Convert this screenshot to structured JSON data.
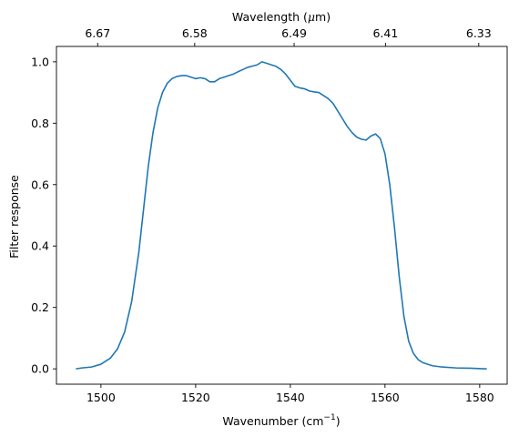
{
  "chart_data": {
    "type": "line",
    "title": "",
    "xlabel": "Wavenumber (cm",
    "xlabel_sup": "−1",
    "xlabel_tail": ")",
    "ylabel": "Filter response",
    "top_axis_label": "Wavelength (",
    "top_axis_label_mu": "μ",
    "top_axis_label_tail": "m)",
    "xlim": [
      1490.6,
      1585.8
    ],
    "ylim": [
      -0.05,
      1.05
    ],
    "x_ticks": [
      1500,
      1520,
      1540,
      1560,
      1580
    ],
    "x_tick_labels": [
      "1500",
      "1520",
      "1540",
      "1560",
      "1580"
    ],
    "y_ticks": [
      0.0,
      0.2,
      0.4,
      0.6,
      0.8,
      1.0
    ],
    "y_tick_labels": [
      "0.0",
      "0.2",
      "0.4",
      "0.6",
      "0.8",
      "1.0"
    ],
    "top_ticks_wavenumber": [
      1499.3,
      1519.8,
      1540.8,
      1560.1,
      1579.8
    ],
    "top_tick_labels": [
      "6.67",
      "6.58",
      "6.49",
      "6.41",
      "6.33"
    ],
    "grid": false,
    "line_color": "#1f77b4",
    "series": [
      {
        "x": [
          1494.7,
          1496.0,
          1498.0,
          1500.0,
          1502.0,
          1503.5,
          1505.0,
          1506.5,
          1508.0,
          1509.0,
          1510.0,
          1511.0,
          1512.0,
          1513.0,
          1514.0,
          1515.0,
          1516.0,
          1517.0,
          1518.0,
          1519.0,
          1520.0,
          1521.0,
          1522.0,
          1523.0,
          1524.0,
          1525.0,
          1526.0,
          1527.0,
          1528.0,
          1529.0,
          1530.0,
          1531.0,
          1532.0,
          1533.0,
          1534.0,
          1535.0,
          1536.0,
          1537.0,
          1538.0,
          1539.0,
          1540.0,
          1541.0,
          1542.0,
          1543.0,
          1544.0,
          1545.0,
          1546.0,
          1547.0,
          1548.0,
          1549.0,
          1550.0,
          1551.0,
          1552.0,
          1553.0,
          1554.0,
          1555.0,
          1556.0,
          1557.0,
          1558.0,
          1559.0,
          1560.0,
          1561.0,
          1562.0,
          1563.0,
          1564.0,
          1565.0,
          1566.0,
          1567.0,
          1568.0,
          1570.0,
          1572.0,
          1575.0,
          1578.0,
          1581.5
        ],
        "y": [
          0.0,
          0.003,
          0.006,
          0.015,
          0.035,
          0.065,
          0.12,
          0.22,
          0.38,
          0.52,
          0.66,
          0.77,
          0.85,
          0.9,
          0.93,
          0.945,
          0.952,
          0.955,
          0.955,
          0.95,
          0.945,
          0.948,
          0.945,
          0.935,
          0.935,
          0.945,
          0.95,
          0.955,
          0.96,
          0.968,
          0.975,
          0.982,
          0.986,
          0.99,
          1.0,
          0.995,
          0.99,
          0.985,
          0.975,
          0.96,
          0.94,
          0.92,
          0.915,
          0.912,
          0.905,
          0.902,
          0.9,
          0.89,
          0.88,
          0.865,
          0.84,
          0.815,
          0.79,
          0.77,
          0.755,
          0.748,
          0.745,
          0.758,
          0.765,
          0.75,
          0.7,
          0.6,
          0.46,
          0.3,
          0.17,
          0.09,
          0.05,
          0.03,
          0.02,
          0.01,
          0.006,
          0.003,
          0.002,
          0.0
        ]
      }
    ]
  }
}
